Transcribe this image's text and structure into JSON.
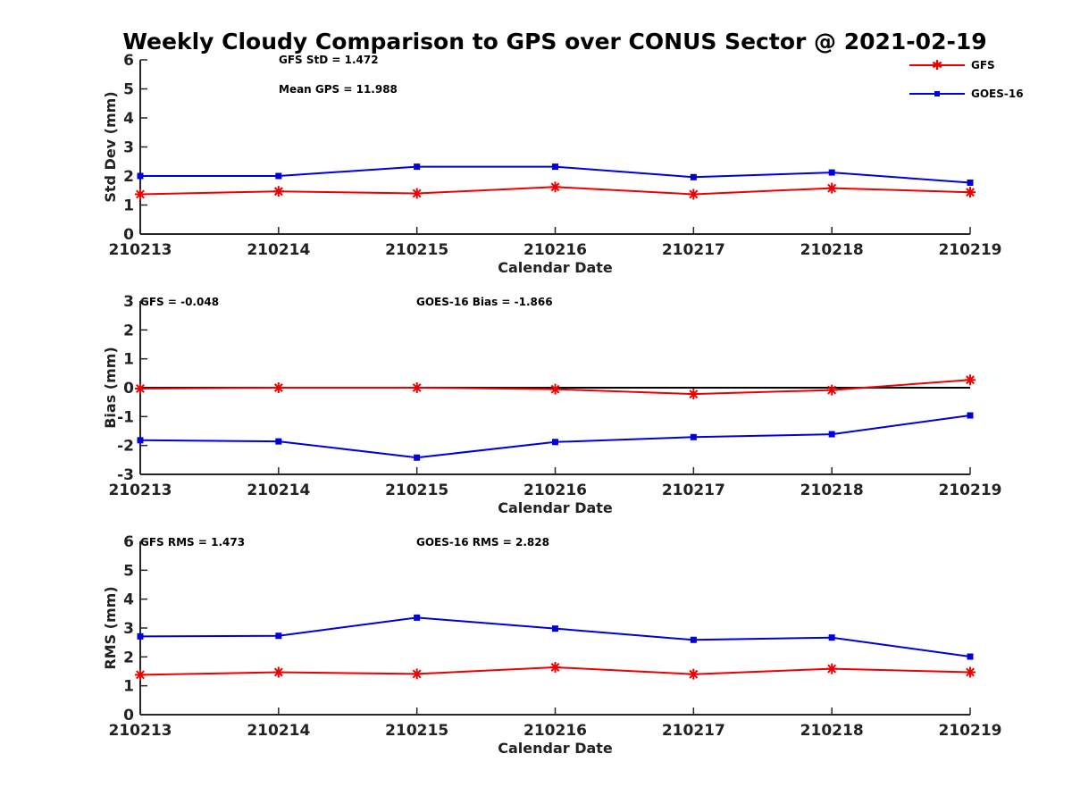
{
  "figure": {
    "title": "Weekly Cloudy Comparison to GPS over CONUS Sector @ 2021-02-19"
  },
  "legend": [
    {
      "name": "GFS",
      "color": "#ee0000",
      "marker": "star"
    },
    {
      "name": "GOES-16",
      "color": "#0000dd",
      "marker": "square"
    }
  ],
  "chart_data": [
    {
      "type": "line",
      "categories": [
        "210213",
        "210214",
        "210215",
        "210216",
        "210217",
        "210218",
        "210219"
      ],
      "xlabel": "Calendar Date",
      "ylabel": "Std Dev (mm)",
      "ylim": [
        0,
        6
      ],
      "yticks": [
        "0",
        "1",
        "2",
        "3",
        "4",
        "5",
        "6"
      ],
      "grid": false,
      "legend_position": "top-right",
      "annotations": [
        "GFS StD = 1.472",
        "Mean GPS = 11.988"
      ],
      "series": [
        {
          "name": "GFS",
          "values": [
            1.37,
            1.47,
            1.4,
            1.62,
            1.37,
            1.58,
            1.44
          ]
        },
        {
          "name": "GOES-16",
          "values": [
            2.0,
            2.0,
            2.32,
            2.32,
            1.96,
            2.12,
            1.77
          ]
        }
      ]
    },
    {
      "type": "line",
      "categories": [
        "210213",
        "210214",
        "210215",
        "210216",
        "210217",
        "210218",
        "210219"
      ],
      "xlabel": "Calendar Date",
      "ylabel": "Bias (mm)",
      "ylim": [
        -3,
        3
      ],
      "yticks": [
        "-3",
        "-2",
        "-1",
        "0",
        "1",
        "2",
        "3"
      ],
      "grid": false,
      "reference_line": 0,
      "annotations": [
        "GFS = -0.048",
        "GOES-16 Bias  = -1.866"
      ],
      "series": [
        {
          "name": "GFS",
          "values": [
            -0.03,
            0.0,
            0.0,
            -0.05,
            -0.22,
            -0.08,
            0.27
          ]
        },
        {
          "name": "GOES-16",
          "values": [
            -1.82,
            -1.86,
            -2.42,
            -1.88,
            -1.71,
            -1.61,
            -0.96
          ]
        }
      ]
    },
    {
      "type": "line",
      "categories": [
        "210213",
        "210214",
        "210215",
        "210216",
        "210217",
        "210218",
        "210219"
      ],
      "xlabel": "Calendar Date",
      "ylabel": "RMS (mm)",
      "ylim": [
        0,
        6
      ],
      "yticks": [
        "0",
        "1",
        "2",
        "3",
        "4",
        "5",
        "6"
      ],
      "grid": false,
      "annotations": [
        "GFS RMS = 1.473",
        "GOES-16 RMS = 2.828"
      ],
      "series": [
        {
          "name": "GFS",
          "values": [
            1.38,
            1.47,
            1.41,
            1.64,
            1.4,
            1.59,
            1.47
          ]
        },
        {
          "name": "GOES-16",
          "values": [
            2.71,
            2.73,
            3.36,
            2.98,
            2.59,
            2.67,
            2.01
          ]
        }
      ]
    }
  ]
}
